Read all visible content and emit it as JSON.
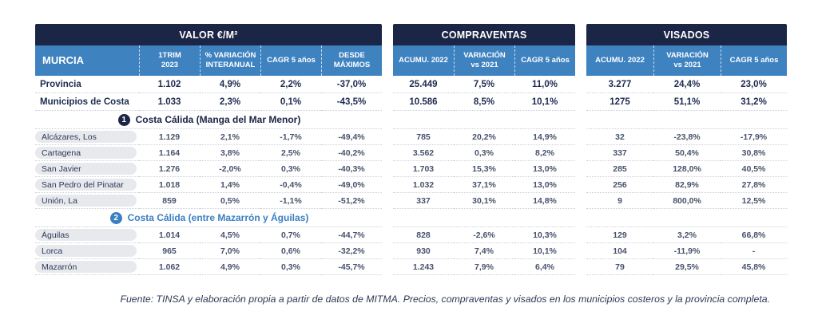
{
  "colors": {
    "header_navy": "#1b2545",
    "header_blue": "#3f82c0",
    "section2_blue": "#3a7fc0",
    "pill_gray": "#e7e9ed",
    "text_navy": "#1e2b4f"
  },
  "header": {
    "groups": [
      {
        "title": "VALOR €/M²"
      },
      {
        "title": "COMPRAVENTAS"
      },
      {
        "title": "VISADOS"
      }
    ],
    "corner_label": "MURCIA",
    "columns": {
      "valor": [
        "1TRIM\n2023",
        "% VARIACIÓN\nINTERANUAL",
        "CAGR 5 años",
        "DESDE\nMÁXIMOS"
      ],
      "compraventas": [
        "ACUMU. 2022",
        "VARIACIÓN\nvs 2021",
        "CAGR 5 años"
      ],
      "visados": [
        "ACUMU. 2022",
        "VARIACIÓN\nvs 2021",
        "CAGR 5 años"
      ]
    }
  },
  "totals": [
    {
      "label": "Provincia",
      "valor": [
        "1.102",
        "4,9%",
        "2,2%",
        "-37,0%"
      ],
      "compraventas": [
        "25.449",
        "7,5%",
        "11,0%"
      ],
      "visados": [
        "3.277",
        "24,4%",
        "23,0%"
      ]
    },
    {
      "label": "Municipios de Costa",
      "valor": [
        "1.033",
        "2,3%",
        "0,1%",
        "-43,5%"
      ],
      "compraventas": [
        "10.586",
        "8,5%",
        "10,1%"
      ],
      "visados": [
        "1275",
        "51,1%",
        "31,2%"
      ]
    }
  ],
  "sections": [
    {
      "number": "1",
      "title": "Costa Cálida (Manga del Mar Menor)",
      "rows": [
        {
          "label": "Alcázares, Los",
          "valor": [
            "1.129",
            "2,1%",
            "-1,7%",
            "-49,4%"
          ],
          "compraventas": [
            "785",
            "20,2%",
            "14,9%"
          ],
          "visados": [
            "32",
            "-23,8%",
            "-17,9%"
          ]
        },
        {
          "label": "Cartagena",
          "valor": [
            "1.164",
            "3,8%",
            "2,5%",
            "-40,2%"
          ],
          "compraventas": [
            "3.562",
            "0,3%",
            "8,2%"
          ],
          "visados": [
            "337",
            "50,4%",
            "30,8%"
          ]
        },
        {
          "label": "San Javier",
          "valor": [
            "1.276",
            "-2,0%",
            "0,3%",
            "-40,3%"
          ],
          "compraventas": [
            "1.703",
            "15,3%",
            "13,0%"
          ],
          "visados": [
            "285",
            "128,0%",
            "40,5%"
          ]
        },
        {
          "label": "San Pedro del Pinatar",
          "valor": [
            "1.018",
            "1,4%",
            "-0,4%",
            "-49,0%"
          ],
          "compraventas": [
            "1.032",
            "37,1%",
            "13,0%"
          ],
          "visados": [
            "256",
            "82,9%",
            "27,8%"
          ]
        },
        {
          "label": "Unión, La",
          "valor": [
            "859",
            "0,5%",
            "-1,1%",
            "-51,2%"
          ],
          "compraventas": [
            "337",
            "30,1%",
            "14,8%"
          ],
          "visados": [
            "9",
            "800,0%",
            "12,5%"
          ]
        }
      ]
    },
    {
      "number": "2",
      "title": "Costa Cálida (entre Mazarrón y Águilas)",
      "rows": [
        {
          "label": "Águilas",
          "valor": [
            "1.014",
            "4,5%",
            "0,7%",
            "-44,7%"
          ],
          "compraventas": [
            "828",
            "-2,6%",
            "10,3%"
          ],
          "visados": [
            "129",
            "3,2%",
            "66,8%"
          ]
        },
        {
          "label": "Lorca",
          "valor": [
            "965",
            "7,0%",
            "0,6%",
            "-32,2%"
          ],
          "compraventas": [
            "930",
            "7,4%",
            "10,1%"
          ],
          "visados": [
            "104",
            "-11,9%",
            "-"
          ]
        },
        {
          "label": "Mazarrón",
          "valor": [
            "1.062",
            "4,9%",
            "0,3%",
            "-45,7%"
          ],
          "compraventas": [
            "1.243",
            "7,9%",
            "6,4%"
          ],
          "visados": [
            "79",
            "29,5%",
            "45,8%"
          ]
        }
      ]
    }
  ],
  "footer": {
    "source": "Fuente: TINSA y elaboración propia a partir de datos de MITMA. Precios, compraventas y visados en los municipios costeros y la provincia completa."
  }
}
